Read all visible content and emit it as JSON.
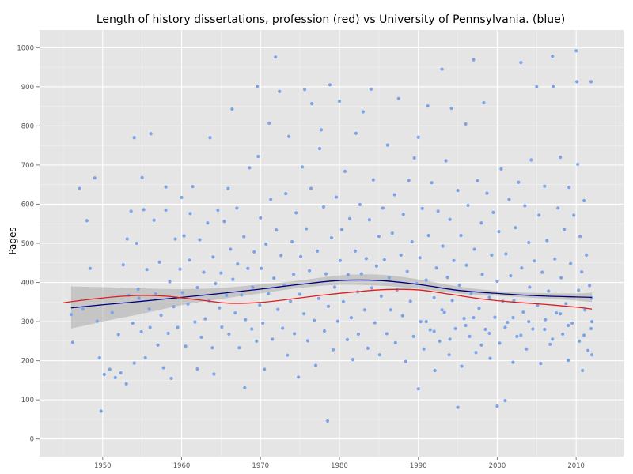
{
  "chart_data": {
    "type": "scatter",
    "title": "Length of history dissertations, profession (red) vs University of Pennsylvania. (blue)",
    "xlabel": "",
    "ylabel": "Pages",
    "xlim": [
      1942,
      2016
    ],
    "ylim": [
      -45,
      1045
    ],
    "x_ticks": [
      1950,
      1960,
      1970,
      1980,
      1990,
      2000,
      2010
    ],
    "y_ticks": [
      0,
      100,
      200,
      300,
      400,
      500,
      600,
      700,
      800,
      900,
      1000
    ],
    "grid": true,
    "point_color": "#7ba4e8",
    "background": "#e5e5e5",
    "series": [
      {
        "name": "University of Pennsylvania. (blue)",
        "type": "smooth",
        "color": "#000080",
        "x": [
          1946,
          1950,
          1955,
          1960,
          1965,
          1970,
          1975,
          1980,
          1985,
          1990,
          1995,
          2000,
          2005,
          2010,
          2012
        ],
        "y": [
          335,
          343,
          352,
          362,
          372,
          383,
          395,
          405,
          405,
          395,
          380,
          372,
          366,
          363,
          362
        ],
        "band_lower": [
          282,
          300,
          320,
          342,
          358,
          372,
          386,
          394,
          392,
          384,
          372,
          366,
          360,
          354,
          350
        ],
        "band_upper": [
          390,
          388,
          385,
          383,
          386,
          395,
          405,
          418,
          420,
          408,
          390,
          378,
          373,
          372,
          374
        ]
      },
      {
        "name": "profession (red)",
        "type": "smooth",
        "color": "#e41a1c",
        "x": [
          1945,
          1948,
          1952,
          1955,
          1958,
          1962,
          1966,
          1970,
          1974,
          1978,
          1982,
          1986,
          1990,
          1994,
          1998,
          2002,
          2006,
          2010,
          2012
        ],
        "y": [
          348,
          356,
          364,
          367,
          365,
          356,
          347,
          349,
          358,
          368,
          376,
          382,
          381,
          370,
          358,
          350,
          344,
          337,
          332
        ]
      }
    ],
    "points": [
      [
        1946.0,
        318
      ],
      [
        1946.2,
        247
      ],
      [
        1947.1,
        640
      ],
      [
        1947.5,
        332
      ],
      [
        1948.0,
        558
      ],
      [
        1948.4,
        436
      ],
      [
        1949.0,
        667
      ],
      [
        1949.3,
        301
      ],
      [
        1949.6,
        207
      ],
      [
        1949.8,
        71
      ],
      [
        1950.2,
        165
      ],
      [
        1950.9,
        178
      ],
      [
        1951.2,
        323
      ],
      [
        1951.6,
        157
      ],
      [
        1952.0,
        267
      ],
      [
        1952.3,
        169
      ],
      [
        1952.6,
        445
      ],
      [
        1953.0,
        141
      ],
      [
        1953.1,
        511
      ],
      [
        1953.3,
        367
      ],
      [
        1953.6,
        582
      ],
      [
        1953.8,
        296
      ],
      [
        1954.0,
        194
      ],
      [
        1954.0,
        770
      ],
      [
        1954.3,
        500
      ],
      [
        1954.5,
        383
      ],
      [
        1954.6,
        360
      ],
      [
        1954.9,
        274
      ],
      [
        1955.0,
        668
      ],
      [
        1955.2,
        586
      ],
      [
        1955.4,
        207
      ],
      [
        1955.6,
        433
      ],
      [
        1955.9,
        332
      ],
      [
        1956.0,
        285
      ],
      [
        1956.1,
        780
      ],
      [
        1956.5,
        559
      ],
      [
        1956.7,
        371
      ],
      [
        1957.0,
        240
      ],
      [
        1957.2,
        452
      ],
      [
        1957.4,
        316
      ],
      [
        1957.7,
        182
      ],
      [
        1958.0,
        585
      ],
      [
        1958.0,
        644
      ],
      [
        1958.3,
        270
      ],
      [
        1958.5,
        402
      ],
      [
        1958.7,
        155
      ],
      [
        1959.0,
        338
      ],
      [
        1959.2,
        511
      ],
      [
        1959.5,
        285
      ],
      [
        1959.8,
        434
      ],
      [
        1960.0,
        617
      ],
      [
        1960.1,
        374
      ],
      [
        1960.3,
        519
      ],
      [
        1960.5,
        237
      ],
      [
        1960.8,
        345
      ],
      [
        1961.0,
        457
      ],
      [
        1961.1,
        576
      ],
      [
        1961.4,
        645
      ],
      [
        1961.7,
        299
      ],
      [
        1962.0,
        179
      ],
      [
        1962.0,
        387
      ],
      [
        1962.3,
        509
      ],
      [
        1962.5,
        260
      ],
      [
        1962.8,
        426
      ],
      [
        1963.0,
        307
      ],
      [
        1963.3,
        552
      ],
      [
        1963.5,
        353
      ],
      [
        1963.6,
        770
      ],
      [
        1963.9,
        233
      ],
      [
        1964.0,
        465
      ],
      [
        1964.1,
        166
      ],
      [
        1964.3,
        397
      ],
      [
        1964.6,
        585
      ],
      [
        1964.8,
        335
      ],
      [
        1965.0,
        424
      ],
      [
        1965.1,
        286
      ],
      [
        1965.4,
        556
      ],
      [
        1965.7,
        367
      ],
      [
        1965.9,
        640
      ],
      [
        1966.0,
        268
      ],
      [
        1966.2,
        485
      ],
      [
        1966.4,
        843
      ],
      [
        1966.5,
        408
      ],
      [
        1966.8,
        322
      ],
      [
        1967.0,
        590
      ],
      [
        1967.1,
        447
      ],
      [
        1967.3,
        233
      ],
      [
        1967.6,
        368
      ],
      [
        1967.9,
        517
      ],
      [
        1968.0,
        131
      ],
      [
        1968.1,
        305
      ],
      [
        1968.4,
        436
      ],
      [
        1968.6,
        693
      ],
      [
        1968.9,
        281
      ],
      [
        1969.0,
        388
      ],
      [
        1969.2,
        478
      ],
      [
        1969.5,
        250
      ],
      [
        1969.6,
        901
      ],
      [
        1969.7,
        722
      ],
      [
        1969.9,
        342
      ],
      [
        1970.0,
        565
      ],
      [
        1970.1,
        436
      ],
      [
        1970.3,
        296
      ],
      [
        1970.5,
        178
      ],
      [
        1970.7,
        498
      ],
      [
        1971.0,
        371
      ],
      [
        1971.1,
        807
      ],
      [
        1971.3,
        612
      ],
      [
        1971.5,
        255
      ],
      [
        1971.7,
        411
      ],
      [
        1971.9,
        976
      ],
      [
        1972.0,
        534
      ],
      [
        1972.2,
        331
      ],
      [
        1972.4,
        888
      ],
      [
        1972.6,
        469
      ],
      [
        1972.8,
        283
      ],
      [
        1973.0,
        393
      ],
      [
        1973.2,
        627
      ],
      [
        1973.4,
        214
      ],
      [
        1973.6,
        773
      ],
      [
        1973.8,
        352
      ],
      [
        1974.0,
        504
      ],
      [
        1974.2,
        421
      ],
      [
        1974.3,
        269
      ],
      [
        1974.5,
        578
      ],
      [
        1974.8,
        158
      ],
      [
        1975.0,
        370
      ],
      [
        1975.1,
        466
      ],
      [
        1975.3,
        695
      ],
      [
        1975.5,
        320
      ],
      [
        1975.6,
        893
      ],
      [
        1975.8,
        537
      ],
      [
        1976.0,
        251
      ],
      [
        1976.2,
        430
      ],
      [
        1976.4,
        640
      ],
      [
        1976.5,
        857
      ],
      [
        1976.8,
        303
      ],
      [
        1977.0,
        188
      ],
      [
        1977.2,
        480
      ],
      [
        1977.4,
        359
      ],
      [
        1977.5,
        742
      ],
      [
        1977.7,
        790
      ],
      [
        1978.0,
        593
      ],
      [
        1978.1,
        276
      ],
      [
        1978.3,
        422
      ],
      [
        1978.5,
        46
      ],
      [
        1978.6,
        339
      ],
      [
        1978.8,
        905
      ],
      [
        1979.0,
        514
      ],
      [
        1979.2,
        228
      ],
      [
        1979.4,
        388
      ],
      [
        1979.6,
        618
      ],
      [
        1979.8,
        301
      ],
      [
        1980.0,
        863
      ],
      [
        1980.1,
        456
      ],
      [
        1980.3,
        535
      ],
      [
        1980.5,
        351
      ],
      [
        1980.7,
        684
      ],
      [
        1981.0,
        254
      ],
      [
        1981.1,
        420
      ],
      [
        1981.3,
        563
      ],
      [
        1981.5,
        310
      ],
      [
        1981.7,
        203
      ],
      [
        1982.0,
        480
      ],
      [
        1982.1,
        781
      ],
      [
        1982.3,
        376
      ],
      [
        1982.4,
        268
      ],
      [
        1982.6,
        599
      ],
      [
        1982.8,
        422
      ],
      [
        1983.0,
        836
      ],
      [
        1983.2,
        330
      ],
      [
        1983.4,
        461
      ],
      [
        1983.6,
        232
      ],
      [
        1983.8,
        560
      ],
      [
        1984.0,
        894
      ],
      [
        1984.1,
        386
      ],
      [
        1984.3,
        662
      ],
      [
        1984.5,
        297
      ],
      [
        1984.7,
        442
      ],
      [
        1985.0,
        518
      ],
      [
        1985.1,
        215
      ],
      [
        1985.3,
        365
      ],
      [
        1985.5,
        590
      ],
      [
        1985.7,
        458
      ],
      [
        1986.0,
        269
      ],
      [
        1986.1,
        751
      ],
      [
        1986.3,
        412
      ],
      [
        1986.5,
        330
      ],
      [
        1986.7,
        526
      ],
      [
        1987.0,
        624
      ],
      [
        1987.1,
        246
      ],
      [
        1987.3,
        381
      ],
      [
        1987.5,
        870
      ],
      [
        1987.8,
        470
      ],
      [
        1988.0,
        315
      ],
      [
        1988.1,
        574
      ],
      [
        1988.4,
        198
      ],
      [
        1988.6,
        428
      ],
      [
        1988.8,
        661
      ],
      [
        1989.0,
        352
      ],
      [
        1989.2,
        504
      ],
      [
        1989.4,
        262
      ],
      [
        1989.5,
        718
      ],
      [
        1989.8,
        397
      ],
      [
        1990.0,
        128
      ],
      [
        1990.0,
        771
      ],
      [
        1990.2,
        463
      ],
      [
        1990.3,
        300
      ],
      [
        1990.5,
        589
      ],
      [
        1990.7,
        230
      ],
      [
        1991.0,
        406
      ],
      [
        1991.2,
        851
      ],
      [
        1991.3,
        520
      ],
      [
        1991.5,
        279
      ],
      [
        1991.7,
        655
      ],
      [
        1992.0,
        361
      ],
      [
        1992.1,
        175
      ],
      [
        1992.3,
        437
      ],
      [
        1992.5,
        582
      ],
      [
        1992.7,
        250
      ],
      [
        1993.0,
        945
      ],
      [
        1993.1,
        493
      ],
      [
        1993.3,
        323
      ],
      [
        1993.5,
        711
      ],
      [
        1993.7,
        413
      ],
      [
        1993.9,
        215
      ],
      [
        1994.0,
        561
      ],
      [
        1994.2,
        845
      ],
      [
        1994.3,
        354
      ],
      [
        1994.5,
        456
      ],
      [
        1994.7,
        282
      ],
      [
        1995.0,
        81
      ],
      [
        1995.0,
        635
      ],
      [
        1995.2,
        393
      ],
      [
        1995.4,
        520
      ],
      [
        1995.5,
        186
      ],
      [
        1995.8,
        308
      ],
      [
        1996.0,
        805
      ],
      [
        1996.1,
        444
      ],
      [
        1996.3,
        597
      ],
      [
        1996.5,
        262
      ],
      [
        1996.7,
        372
      ],
      [
        1997.0,
        969
      ],
      [
        1997.1,
        485
      ],
      [
        1997.3,
        221
      ],
      [
        1997.5,
        660
      ],
      [
        1997.7,
        334
      ],
      [
        1998.0,
        552
      ],
      [
        1998.1,
        420
      ],
      [
        1998.3,
        859
      ],
      [
        1998.5,
        280
      ],
      [
        1998.7,
        628
      ],
      [
        1999.0,
        362
      ],
      [
        1999.1,
        206
      ],
      [
        1999.3,
        470
      ],
      [
        1999.5,
        579
      ],
      [
        1999.7,
        311
      ],
      [
        2000.0,
        84
      ],
      [
        2000.0,
        403
      ],
      [
        2000.2,
        530
      ],
      [
        2000.3,
        245
      ],
      [
        2000.5,
        690
      ],
      [
        2000.7,
        352
      ],
      [
        2001.0,
        98
      ],
      [
        2001.1,
        473
      ],
      [
        2001.3,
        298
      ],
      [
        2001.5,
        612
      ],
      [
        2001.7,
        417
      ],
      [
        2002.0,
        196
      ],
      [
        2002.1,
        354
      ],
      [
        2002.3,
        540
      ],
      [
        2002.5,
        262
      ],
      [
        2002.7,
        656
      ],
      [
        2003.0,
        962
      ],
      [
        2003.1,
        437
      ],
      [
        2003.3,
        324
      ],
      [
        2003.5,
        596
      ],
      [
        2003.7,
        230
      ],
      [
        2004.0,
        502
      ],
      [
        2004.1,
        388
      ],
      [
        2004.3,
        713
      ],
      [
        2004.5,
        281
      ],
      [
        2004.7,
        455
      ],
      [
        2005.0,
        900
      ],
      [
        2005.1,
        341
      ],
      [
        2005.3,
        572
      ],
      [
        2005.5,
        193
      ],
      [
        2005.7,
        426
      ],
      [
        2006.0,
        646
      ],
      [
        2006.1,
        305
      ],
      [
        2006.3,
        507
      ],
      [
        2006.5,
        378
      ],
      [
        2006.7,
        242
      ],
      [
        2007.0,
        978
      ],
      [
        2007.1,
        901
      ],
      [
        2007.3,
        460
      ],
      [
        2007.5,
        322
      ],
      [
        2007.7,
        590
      ],
      [
        2008.0,
        720
      ],
      [
        2008.1,
        412
      ],
      [
        2008.3,
        268
      ],
      [
        2008.5,
        535
      ],
      [
        2008.7,
        346
      ],
      [
        2009.0,
        201
      ],
      [
        2009.1,
        643
      ],
      [
        2009.3,
        448
      ],
      [
        2009.5,
        296
      ],
      [
        2009.7,
        572
      ],
      [
        2010.0,
        992
      ],
      [
        2010.1,
        913
      ],
      [
        2010.2,
        702
      ],
      [
        2010.3,
        380
      ],
      [
        2010.4,
        250
      ],
      [
        2010.5,
        518
      ],
      [
        2010.7,
        427
      ],
      [
        2010.8,
        175
      ],
      [
        2011.0,
        609
      ],
      [
        2011.1,
        330
      ],
      [
        2011.3,
        470
      ],
      [
        2011.5,
        226
      ],
      [
        2011.7,
        392
      ],
      [
        2011.9,
        913
      ],
      [
        2011.9,
        282
      ],
      [
        1991.0,
        300
      ],
      [
        1992.0,
        275
      ],
      [
        1993.0,
        330
      ],
      [
        1994.0,
        255
      ],
      [
        1996.0,
        290
      ],
      [
        1997.0,
        310
      ],
      [
        1998.0,
        240
      ],
      [
        1999.0,
        270
      ],
      [
        2001.0,
        285
      ],
      [
        2002.0,
        310
      ],
      [
        2003.0,
        265
      ],
      [
        2004.0,
        300
      ],
      [
        2006.0,
        280
      ],
      [
        2007.0,
        255
      ],
      [
        2008.0,
        320
      ],
      [
        2009.0,
        290
      ],
      [
        2011.0,
        265
      ],
      [
        2012.0,
        300
      ],
      [
        2012.0,
        360
      ],
      [
        2012.0,
        215
      ]
    ]
  }
}
